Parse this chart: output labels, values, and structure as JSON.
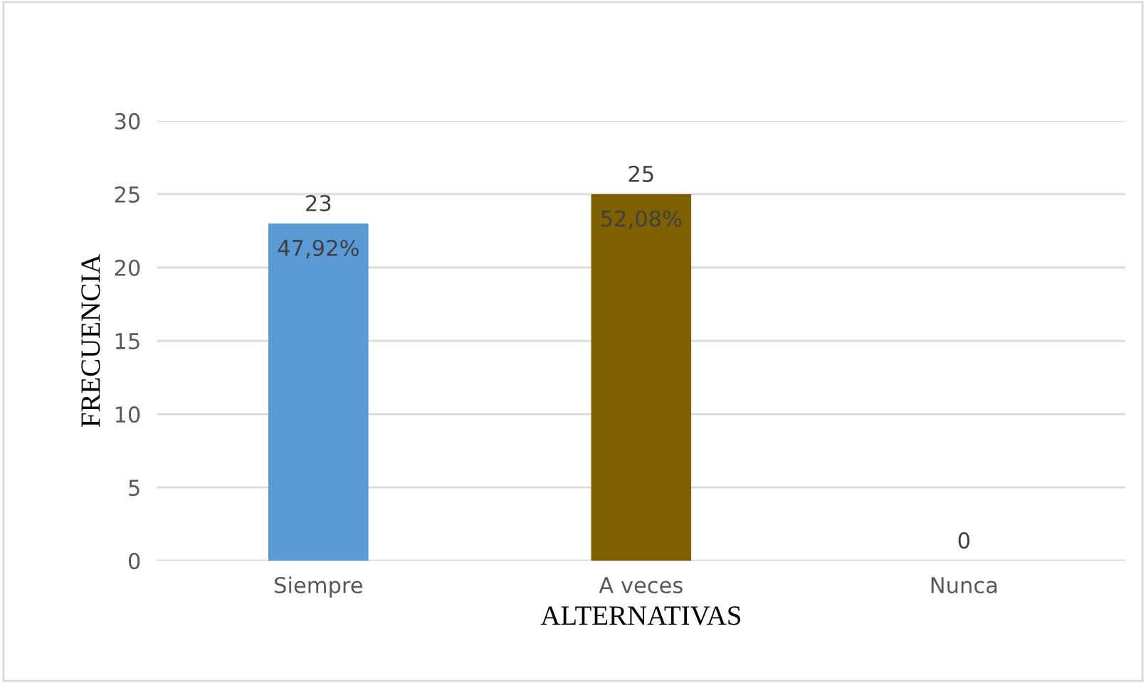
{
  "chart_data": {
    "type": "bar",
    "xlabel": "ALTERNATIVAS",
    "ylabel": "FRECUENCIA",
    "categories": [
      "Siempre",
      "A veces",
      "Nunca"
    ],
    "values": [
      23,
      25,
      0
    ],
    "colors": [
      "#5b9bd5",
      "#7f6000",
      "#a5a5a5"
    ],
    "ylim": [
      0,
      30
    ],
    "yticks": [
      0,
      5,
      10,
      15,
      20,
      25,
      30
    ],
    "grid": "y",
    "data_labels": true,
    "annotations": [
      "47,92%",
      "52,08%"
    ]
  }
}
